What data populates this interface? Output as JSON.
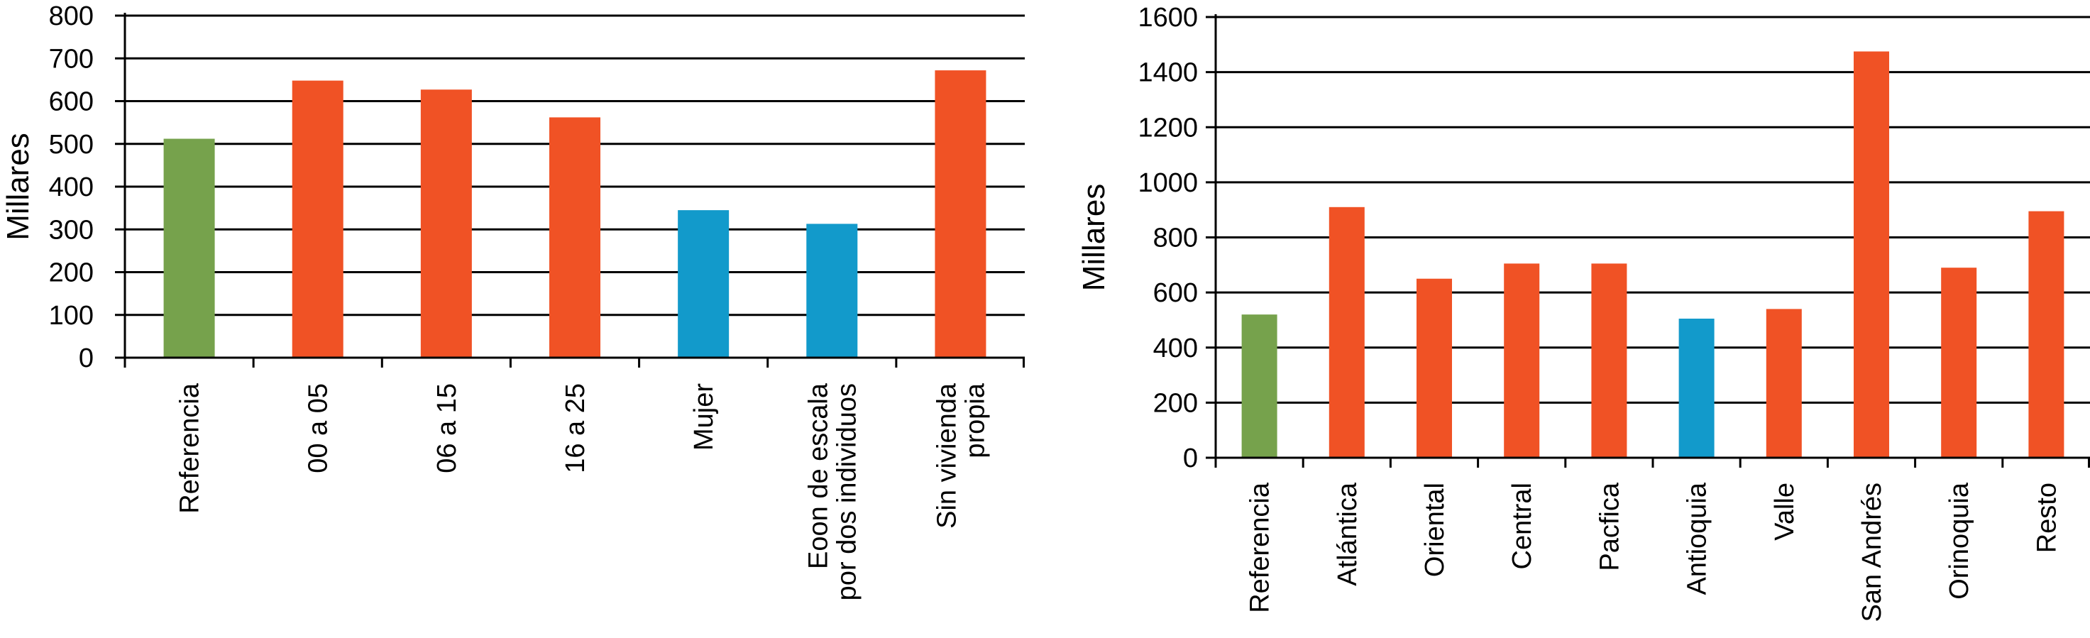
{
  "chart_data": [
    {
      "type": "bar",
      "title": "",
      "xlabel": "",
      "ylabel": "Millares",
      "ylim": [
        0,
        800
      ],
      "yticks": [
        0,
        100,
        200,
        300,
        400,
        500,
        600,
        700,
        800
      ],
      "grid": true,
      "categories": [
        [
          "Referencia"
        ],
        [
          "00 a 05"
        ],
        [
          "06 a 15"
        ],
        [
          "16 a 25"
        ],
        [
          "Mujer"
        ],
        [
          "Eoon de escala",
          "por dos individuos"
        ],
        [
          "Sin vivienda",
          "propia"
        ]
      ],
      "values": [
        512,
        648,
        627,
        562,
        345,
        313,
        672
      ],
      "bar_colors": [
        "#76a24c",
        "#f05225",
        "#f05225",
        "#f05225",
        "#129acb",
        "#129acb",
        "#f05225"
      ]
    },
    {
      "type": "bar",
      "title": "",
      "xlabel": "",
      "ylabel": "Millares",
      "ylim": [
        0,
        1600
      ],
      "yticks": [
        0,
        200,
        400,
        600,
        800,
        1000,
        1200,
        1400,
        1600
      ],
      "grid": true,
      "categories": [
        [
          "Referencia"
        ],
        [
          "Atlántica"
        ],
        [
          "Oriental"
        ],
        [
          "Central"
        ],
        [
          "Pacfica"
        ],
        [
          "Antioquia"
        ],
        [
          "Valle"
        ],
        [
          "San Andrés"
        ],
        [
          "Orinoquia"
        ],
        [
          "Resto"
        ]
      ],
      "values": [
        520,
        910,
        650,
        705,
        705,
        505,
        540,
        1475,
        690,
        895
      ],
      "bar_colors": [
        "#76a24c",
        "#f05225",
        "#f05225",
        "#f05225",
        "#f05225",
        "#129acb",
        "#f05225",
        "#f05225",
        "#f05225",
        "#f05225"
      ]
    }
  ]
}
